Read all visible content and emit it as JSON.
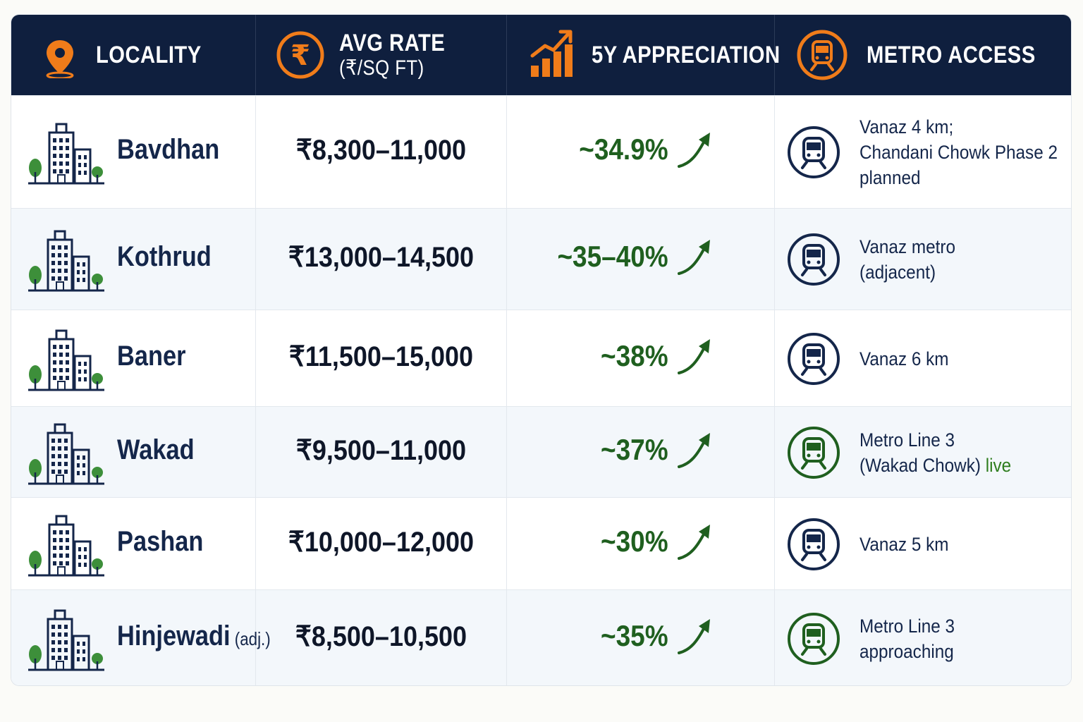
{
  "chart_data": {
    "type": "table",
    "columns": [
      {
        "key": "locality",
        "label": "LOCALITY",
        "icon": "location-pin-icon"
      },
      {
        "key": "avg_rate",
        "label": "AVG RATE",
        "sublabel": "(₹/SQ FT)",
        "icon": "rupee-coin-icon"
      },
      {
        "key": "appreciation",
        "label": "5Y APPRECIATION",
        "icon": "growth-chart-icon"
      },
      {
        "key": "metro",
        "label": "METRO ACCESS",
        "icon": "metro-train-icon"
      }
    ],
    "rows": [
      {
        "locality": "Bavdhan",
        "suffix": "",
        "rate": "₹8,300–11,000",
        "appreciation": "~34.9%",
        "metro_lines": [
          "Vanaz 4 km;",
          "Chandani Chowk Phase 2",
          "planned"
        ],
        "metro_live": "",
        "metro_status": "navy"
      },
      {
        "locality": "Kothrud",
        "suffix": "",
        "rate": "₹13,000–14,500",
        "appreciation": "~35–40%",
        "metro_lines": [
          "Vanaz metro",
          "(adjacent)"
        ],
        "metro_live": "",
        "metro_status": "navy"
      },
      {
        "locality": "Baner",
        "suffix": "",
        "rate": "₹11,500–15,000",
        "appreciation": "~38%",
        "metro_lines": [
          "Vanaz 6 km"
        ],
        "metro_live": "",
        "metro_status": "navy"
      },
      {
        "locality": "Wakad",
        "suffix": "",
        "rate": "₹9,500–11,000",
        "appreciation": "~37%",
        "metro_lines": [
          "Metro Line 3",
          "(Wakad Chowk)"
        ],
        "metro_live": " live",
        "metro_status": "green"
      },
      {
        "locality": "Pashan",
        "suffix": "",
        "rate": "₹10,000–12,000",
        "appreciation": "~30%",
        "metro_lines": [
          "Vanaz 5 km"
        ],
        "metro_live": "",
        "metro_status": "navy"
      },
      {
        "locality": "Hinjewadi",
        "suffix": " (adj.)",
        "rate": "₹8,500–10,500",
        "appreciation": "~35%",
        "metro_lines": [
          "Metro Line 3",
          "approaching"
        ],
        "metro_live": "",
        "metro_status": "green"
      }
    ]
  },
  "colors": {
    "header_bg": "#0f1f3e",
    "accent_orange": "#f07c1a",
    "navy": "#14264a",
    "green": "#1f5f1f",
    "live_green": "#2e7d1e"
  }
}
